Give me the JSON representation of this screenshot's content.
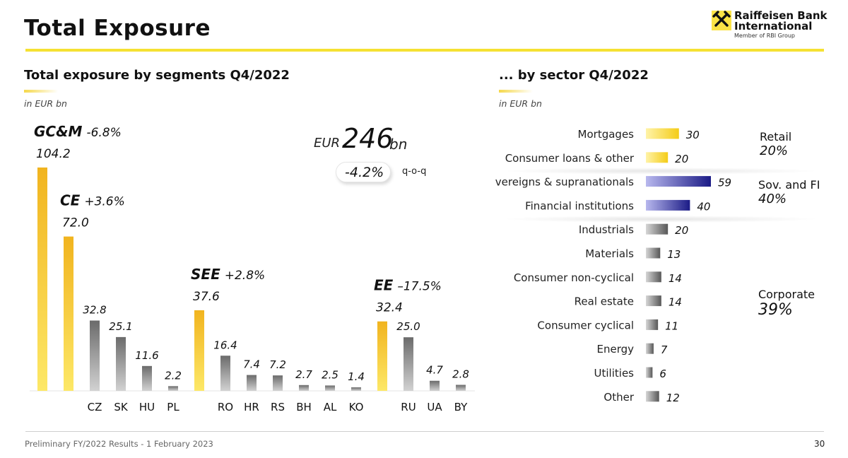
{
  "header": {
    "title": "Total Exposure",
    "logo_line1": "Raiffeisen Bank",
    "logo_line2": "International",
    "logo_sub": "Member of RBI Group"
  },
  "left": {
    "title": "Total exposure by segments Q4/2022",
    "unit": "in EUR bn",
    "total_prefix": "EUR",
    "total_value": "246",
    "total_suffix": "bn",
    "qoq_value": "-4.2%",
    "qoq_label": "q-o-q"
  },
  "right": {
    "title": "... by sector Q4/2022",
    "unit": "in EUR bn",
    "groups": [
      {
        "label": "Retail",
        "pct": "20%"
      },
      {
        "label": "Sov. and FI",
        "pct": "40%"
      },
      {
        "label": "Corporate",
        "pct": "39%"
      }
    ]
  },
  "footer": {
    "text": "Preliminary FY/2022 Results - 1 February 2023",
    "page": "30"
  },
  "colors": {
    "brand_yellow": "#fbe346",
    "segment_bar": "#f2c21c",
    "country_bar": "#8a8a8a",
    "retail_bar": "#f6d21e",
    "sovereign_bar": "#24248a",
    "corporate_bar": "#6e6e6e"
  },
  "chart_data": [
    {
      "type": "bar",
      "title": "Total exposure by segments Q4/2022",
      "ylabel": "in EUR bn",
      "segments": [
        {
          "name": "GC&M",
          "change": "-6.8%",
          "value": 104.2,
          "value_label": "104.2",
          "countries": []
        },
        {
          "name": "CE",
          "change": "+3.6%",
          "value": 72.0,
          "value_label": "72.0",
          "countries": [
            {
              "name": "CZ",
              "value": 32.8,
              "value_label": "32.8"
            },
            {
              "name": "SK",
              "value": 25.1,
              "value_label": "25.1"
            },
            {
              "name": "HU",
              "value": 11.6,
              "value_label": "11.6"
            },
            {
              "name": "PL",
              "value": 2.2,
              "value_label": "2.2"
            }
          ]
        },
        {
          "name": "SEE",
          "change": "+2.8%",
          "value": 37.6,
          "value_label": "37.6",
          "countries": [
            {
              "name": "RO",
              "value": 16.4,
              "value_label": "16.4"
            },
            {
              "name": "HR",
              "value": 7.4,
              "value_label": "7.4"
            },
            {
              "name": "RS",
              "value": 7.2,
              "value_label": "7.2"
            },
            {
              "name": "BH",
              "value": 2.7,
              "value_label": "2.7"
            },
            {
              "name": "AL",
              "value": 2.5,
              "value_label": "2.5"
            },
            {
              "name": "KO",
              "value": 1.4,
              "value_label": "1.4"
            }
          ]
        },
        {
          "name": "EE",
          "change": "–17.5%",
          "value": 32.4,
          "value_label": "32.4",
          "countries": [
            {
              "name": "RU",
              "value": 25.0,
              "value_label": "25.0"
            },
            {
              "name": "UA",
              "value": 4.7,
              "value_label": "4.7"
            },
            {
              "name": "BY",
              "value": 2.8,
              "value_label": "2.8"
            }
          ]
        }
      ]
    },
    {
      "type": "bar",
      "orientation": "horizontal",
      "title": "... by sector Q4/2022",
      "xlabel": "in EUR bn",
      "categories": [
        "Mortgages",
        "Consumer loans & other",
        "Sovereigns & supranationals",
        "Financial institutions",
        "Industrials",
        "Materials",
        "Consumer non-cyclical",
        "Real estate",
        "Consumer cyclical",
        "Energy",
        "Utilities",
        "Other"
      ],
      "values": [
        30,
        20,
        59,
        40,
        20,
        13,
        14,
        14,
        11,
        7,
        6,
        12
      ],
      "groups": [
        "Retail",
        "Retail",
        "Sov. and FI",
        "Sov. and FI",
        "Corporate",
        "Corporate",
        "Corporate",
        "Corporate",
        "Corporate",
        "Corporate",
        "Corporate",
        "Corporate"
      ]
    }
  ]
}
